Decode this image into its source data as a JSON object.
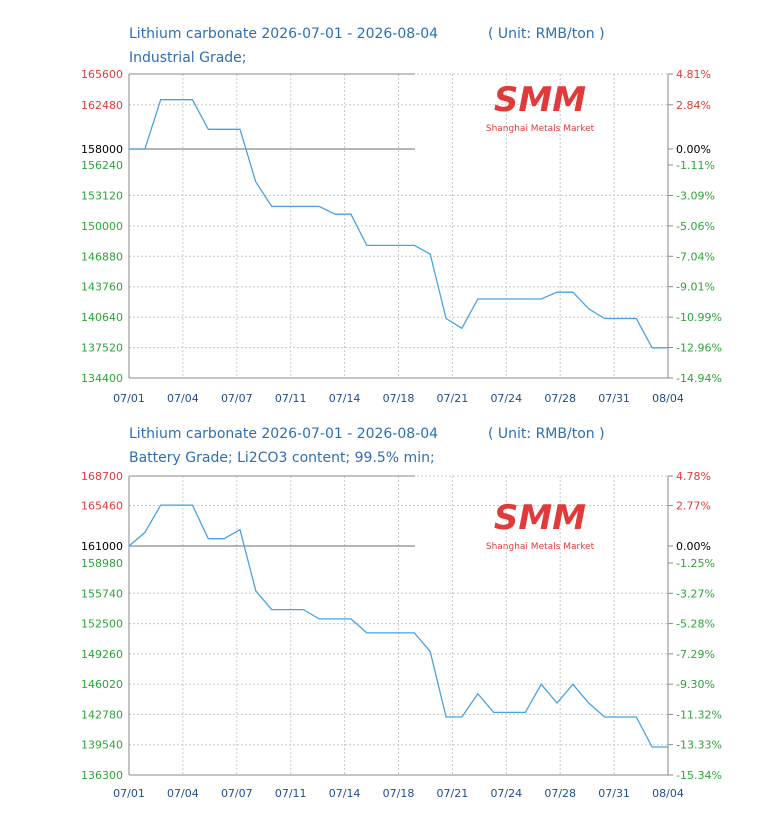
{
  "colors": {
    "title": "#2f6fb0",
    "up": "#e23b3b",
    "down": "#2ea43a",
    "line": "#4aa3df",
    "logo": "#e03a3a"
  },
  "logo": {
    "mark": "SMM",
    "subtitle": "Shanghai Metals Market"
  },
  "chart_data": [
    {
      "type": "line",
      "title": "Lithium carbonate 2026-07-01 - 2026-08-04",
      "unit": "( Unit: RMB/ton )",
      "subtitle": "Industrial Grade;",
      "x_ticks": [
        "07/01",
        "07/04",
        "07/07",
        "07/11",
        "07/14",
        "07/18",
        "07/21",
        "07/24",
        "07/28",
        "07/31",
        "08/04"
      ],
      "y_ticks_left_up": [
        "165600",
        "162480"
      ],
      "y_tick_base": "158000",
      "y_ticks_left_down": [
        "156240",
        "153120",
        "150000",
        "146880",
        "143760",
        "140640",
        "137520",
        "134400"
      ],
      "y_ticks_right_up": [
        "4.81%",
        "2.84%"
      ],
      "y_tick_right_base": "0.00%",
      "y_ticks_right_down": [
        "-1.11%",
        "-3.09%",
        "-5.06%",
        "-7.04%",
        "-9.01%",
        "-10.99%",
        "-12.96%",
        "-14.94%"
      ],
      "ylim": [
        134400,
        165600
      ],
      "series": [
        {
          "values": [
            158000,
            158000,
            163000,
            163000,
            163000,
            160000,
            160000,
            160000,
            154500,
            152000,
            152000,
            152000,
            152000,
            151200,
            151200,
            148000,
            148000,
            148000,
            148000,
            147100,
            140500,
            139500,
            142500,
            142500,
            142500,
            142500,
            142500,
            143200,
            143200,
            141500,
            140500,
            140500,
            140500,
            137500,
            137500
          ]
        }
      ]
    },
    {
      "type": "line",
      "title": "Lithium carbonate 2026-07-01 - 2026-08-04",
      "unit": "( Unit: RMB/ton )",
      "subtitle": "Battery Grade; Li2CO3 content; 99.5% min;",
      "x_ticks": [
        "07/01",
        "07/04",
        "07/07",
        "07/11",
        "07/14",
        "07/18",
        "07/21",
        "07/24",
        "07/28",
        "07/31",
        "08/04"
      ],
      "y_ticks_left_up": [
        "168700",
        "165460"
      ],
      "y_tick_base": "161000",
      "y_ticks_left_down": [
        "158980",
        "155740",
        "152500",
        "149260",
        "146020",
        "142780",
        "139540",
        "136300"
      ],
      "y_ticks_right_up": [
        "4.78%",
        "2.77%"
      ],
      "y_tick_right_base": "0.00%",
      "y_ticks_right_down": [
        "-1.25%",
        "-3.27%",
        "-5.28%",
        "-7.29%",
        "-9.30%",
        "-11.32%",
        "-13.33%",
        "-15.34%"
      ],
      "ylim": [
        136300,
        168700
      ],
      "series": [
        {
          "values": [
            161000,
            162500,
            165500,
            165500,
            165500,
            161800,
            161800,
            162800,
            156000,
            154000,
            154000,
            154000,
            153000,
            153000,
            153000,
            151500,
            151500,
            151500,
            151500,
            149500,
            142500,
            142500,
            145000,
            143000,
            143000,
            143000,
            146000,
            144000,
            146000,
            144000,
            142500,
            142500,
            142500,
            139300,
            139300
          ]
        }
      ]
    }
  ]
}
